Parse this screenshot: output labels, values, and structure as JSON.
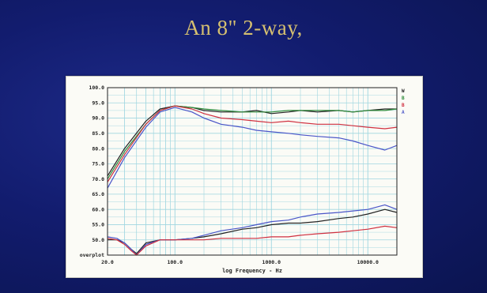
{
  "slide": {
    "title": "An 8\" 2-way,"
  },
  "colors": {
    "background": "#121c6e",
    "title": "#d6c070",
    "grid": "#9fd6e0",
    "series_black": "#222222",
    "series_green": "#2e8b3a",
    "series_red": "#d03040",
    "series_blue": "#4a55c8"
  },
  "chart_data": {
    "type": "line",
    "xlabel": "log Frequency - Hz",
    "ylabel": "",
    "x_scale": "log",
    "xlim": [
      20,
      20000
    ],
    "ylim": [
      45,
      100
    ],
    "y_ticks": [
      "100.0",
      "95.0",
      "90.0",
      "85.0",
      "80.0",
      "75.0",
      "70.0",
      "65.0",
      "60.0",
      "55.0",
      "50.0"
    ],
    "y_bottom_label": "overplot",
    "x_ticks": [
      {
        "value": 20,
        "label": "20.0"
      },
      {
        "value": 100,
        "label": "100.0"
      },
      {
        "value": 1000,
        "label": "1000.0"
      },
      {
        "value": 10000,
        "label": "10000.0"
      }
    ],
    "legend_codes": [
      "W",
      "B",
      "B",
      "A"
    ],
    "grid": true,
    "series": [
      {
        "color": "series_black",
        "x": [
          20,
          30,
          50,
          70,
          100,
          150,
          200,
          300,
          500,
          700,
          1000,
          1500,
          2000,
          3000,
          5000,
          7000,
          10000,
          15000,
          20000
        ],
        "y": [
          71,
          80,
          89,
          93,
          94,
          93.5,
          92.5,
          92,
          92,
          92.5,
          91.5,
          92,
          92.5,
          92,
          92.5,
          92,
          92.5,
          93,
          93
        ]
      },
      {
        "color": "series_green",
        "x": [
          20,
          30,
          50,
          70,
          100,
          150,
          200,
          300,
          500,
          700,
          1000,
          1500,
          2000,
          3000,
          5000,
          7000,
          10000,
          15000,
          20000
        ],
        "y": [
          70,
          79,
          88,
          92.5,
          94,
          93.5,
          93,
          92.5,
          92,
          92,
          92,
          92.5,
          92.5,
          92.5,
          92.5,
          92,
          92.5,
          92.5,
          93
        ]
      },
      {
        "color": "series_red",
        "x": [
          20,
          30,
          50,
          70,
          100,
          150,
          200,
          300,
          500,
          700,
          1000,
          1500,
          2000,
          3000,
          5000,
          7000,
          10000,
          15000,
          20000
        ],
        "y": [
          69,
          78,
          88,
          92.5,
          94,
          93,
          91.5,
          90,
          89.5,
          89,
          88.5,
          89,
          88.5,
          88,
          88,
          87.5,
          87,
          86.5,
          87
        ]
      },
      {
        "color": "series_blue",
        "x": [
          20,
          30,
          50,
          70,
          100,
          150,
          200,
          300,
          500,
          700,
          1000,
          1500,
          2000,
          3000,
          5000,
          7000,
          10000,
          15000,
          20000
        ],
        "y": [
          67,
          77,
          87,
          92,
          93.5,
          92,
          90,
          88,
          87,
          86,
          85.5,
          85,
          84.5,
          84,
          83.5,
          82.5,
          81,
          79.5,
          81
        ]
      },
      {
        "color": "series_black",
        "x": [
          20,
          25,
          30,
          35,
          40,
          50,
          70,
          100,
          150,
          200,
          300,
          500,
          700,
          1000,
          1500,
          2000,
          3000,
          5000,
          7000,
          10000,
          15000,
          20000
        ],
        "y": [
          50,
          50,
          49,
          47,
          45.5,
          49,
          50,
          50,
          50.5,
          51,
          52,
          53.5,
          54,
          55,
          55.5,
          55.5,
          56,
          57,
          57.5,
          58.5,
          60,
          59
        ]
      },
      {
        "color": "series_blue",
        "x": [
          20,
          25,
          30,
          35,
          40,
          50,
          70,
          100,
          150,
          200,
          300,
          500,
          700,
          1000,
          1500,
          2000,
          3000,
          5000,
          7000,
          10000,
          15000,
          20000
        ],
        "y": [
          51,
          50.5,
          49,
          47,
          45,
          48.5,
          50,
          50,
          50.5,
          51.5,
          53,
          54,
          55,
          56,
          56.5,
          57.5,
          58.5,
          59,
          59.5,
          60,
          61.5,
          60
        ]
      },
      {
        "color": "series_red",
        "x": [
          20,
          25,
          30,
          35,
          40,
          50,
          70,
          100,
          150,
          200,
          300,
          500,
          700,
          1000,
          1500,
          2000,
          3000,
          5000,
          7000,
          10000,
          15000,
          20000
        ],
        "y": [
          50.5,
          50,
          48.5,
          46.5,
          45,
          48,
          50,
          50,
          50,
          50,
          50.5,
          50.5,
          50.5,
          51,
          51,
          51.5,
          52,
          52.5,
          53,
          53.5,
          54.5,
          54
        ]
      }
    ]
  }
}
